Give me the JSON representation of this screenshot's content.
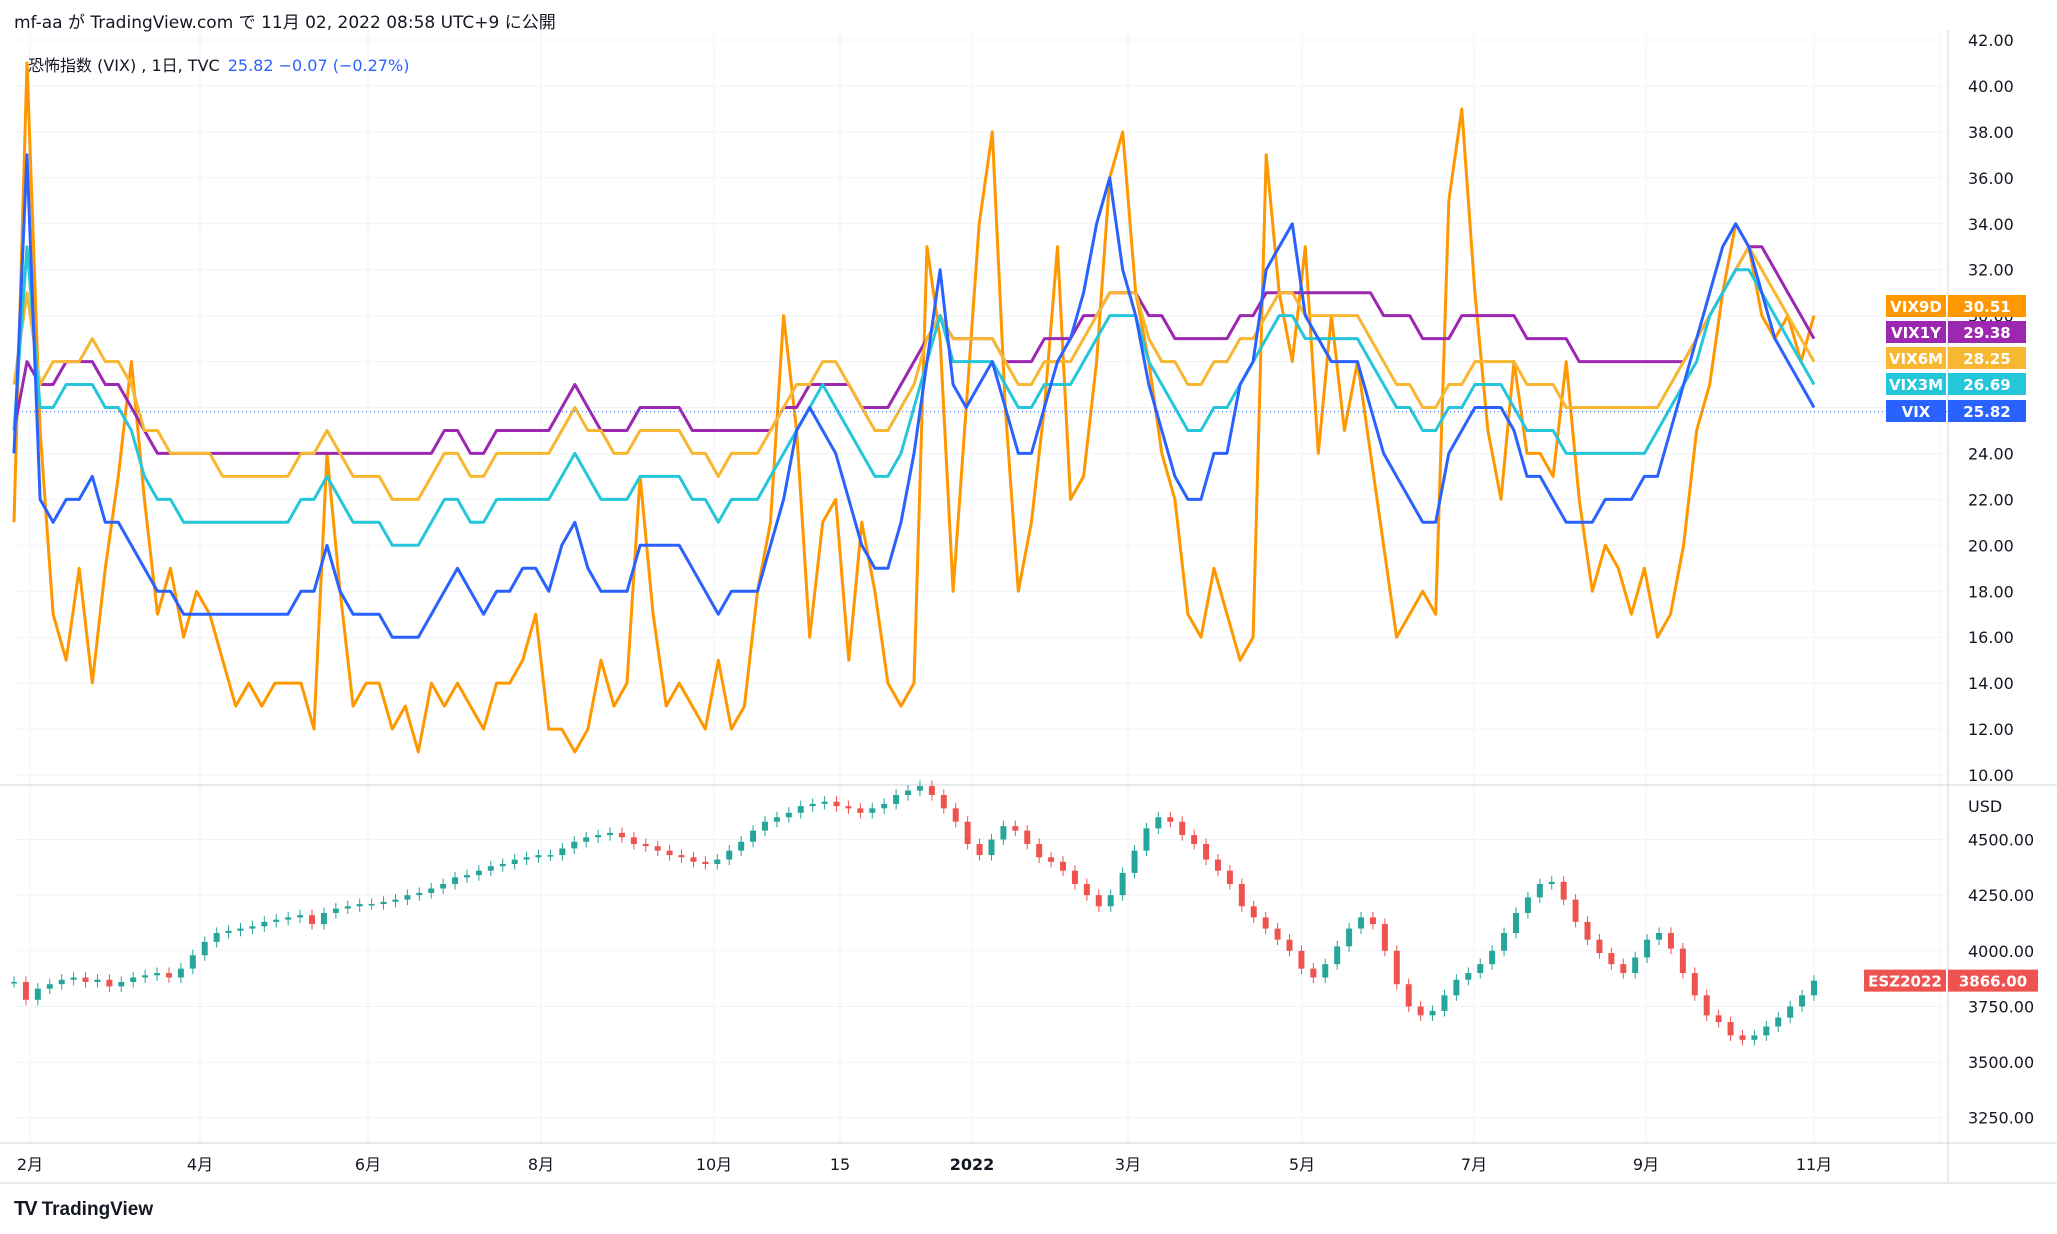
{
  "header": {
    "attribution": "mf-aa が TradingView.com で 11月 02, 2022 08:58 UTC+9 に公開"
  },
  "legend": {
    "symbol": "恐怖指数 (VIX) , 1日, TVC",
    "value": "25.82  −0.07 (−0.27%)"
  },
  "footer": {
    "logo": "TV",
    "brand": "TradingView"
  },
  "colors": {
    "VIX": "#2962ff",
    "VIX9D": "#ff9800",
    "VIX1Y": "#9c27b0",
    "VIX6M": "#f7b731",
    "VIX3M": "#26c6da",
    "ESZ2022": "#ef5350",
    "up": "#26a69a",
    "down": "#ef5350"
  },
  "chart_data": [
    {
      "type": "line",
      "title": "恐怖指数 (VIX) , 1日, TVC",
      "x_ticks": [
        "2月",
        "4月",
        "6月",
        "8月",
        "10月",
        "15",
        "2022",
        "3月",
        "5月",
        "7月",
        "9月",
        "11月"
      ],
      "y_ticks": [
        "10.00",
        "12.00",
        "14.00",
        "16.00",
        "18.00",
        "20.00",
        "22.00",
        "24.00",
        "26.00",
        "28.00",
        "30.00",
        "32.00",
        "34.00",
        "36.00",
        "38.00",
        "40.00",
        "42.00"
      ],
      "ylim": [
        10,
        42
      ],
      "last_labels": [
        {
          "name": "VIX9D",
          "value": "30.51"
        },
        {
          "name": "VIX1Y",
          "value": "29.38"
        },
        {
          "name": "VIX6M",
          "value": "28.25"
        },
        {
          "name": "VIX3M",
          "value": "26.69"
        },
        {
          "name": "VIX",
          "value": "25.82"
        }
      ],
      "series": [
        {
          "name": "VIX9D",
          "values": [
            21,
            41,
            25,
            17,
            15,
            19,
            14,
            19,
            23,
            28,
            22,
            17,
            19,
            16,
            18,
            17,
            15,
            13,
            14,
            13,
            14,
            14,
            14,
            12,
            24,
            18,
            13,
            14,
            14,
            12,
            13,
            11,
            14,
            13,
            14,
            13,
            12,
            14,
            14,
            15,
            17,
            12,
            12,
            11,
            12,
            15,
            13,
            14,
            23,
            17,
            13,
            14,
            13,
            12,
            15,
            12,
            13,
            18,
            21,
            30,
            25,
            16,
            21,
            22,
            15,
            21,
            18,
            14,
            13,
            14,
            33,
            29,
            18,
            26,
            34,
            38,
            26,
            18,
            21,
            26,
            33,
            22,
            23,
            28,
            36,
            38,
            31,
            28,
            24,
            22,
            17,
            16,
            19,
            17,
            15,
            16,
            37,
            31,
            28,
            33,
            24,
            30,
            25,
            28,
            24,
            20,
            16,
            17,
            18,
            17,
            35,
            39,
            31,
            25,
            22,
            28,
            24,
            24,
            23,
            28,
            22,
            18,
            20,
            19,
            17,
            19,
            16,
            17,
            20,
            25,
            27,
            31,
            34,
            33,
            30,
            29,
            30,
            28,
            30
          ]
        },
        {
          "name": "VIX1Y",
          "values": [
            25,
            28,
            27,
            27,
            28,
            28,
            28,
            27,
            27,
            26,
            25,
            24,
            24,
            24,
            24,
            24,
            24,
            24,
            24,
            24,
            24,
            24,
            24,
            24,
            24,
            24,
            24,
            24,
            24,
            24,
            24,
            24,
            24,
            25,
            25,
            24,
            24,
            25,
            25,
            25,
            25,
            25,
            26,
            27,
            26,
            25,
            25,
            25,
            26,
            26,
            26,
            26,
            25,
            25,
            25,
            25,
            25,
            25,
            25,
            26,
            26,
            27,
            27,
            27,
            27,
            26,
            26,
            26,
            27,
            28,
            29,
            30,
            29,
            29,
            29,
            29,
            28,
            28,
            28,
            29,
            29,
            29,
            30,
            30,
            31,
            31,
            31,
            30,
            30,
            29,
            29,
            29,
            29,
            29,
            30,
            30,
            31,
            31,
            31,
            31,
            31,
            31,
            31,
            31,
            31,
            30,
            30,
            30,
            29,
            29,
            29,
            30,
            30,
            30,
            30,
            30,
            29,
            29,
            29,
            29,
            28,
            28,
            28,
            28,
            28,
            28,
            28,
            28,
            28,
            29,
            30,
            31,
            32,
            33,
            33,
            32,
            31,
            30,
            29
          ]
        },
        {
          "name": "VIX6M",
          "values": [
            27,
            31,
            27,
            28,
            28,
            28,
            29,
            28,
            28,
            27,
            25,
            25,
            24,
            24,
            24,
            24,
            23,
            23,
            23,
            23,
            23,
            23,
            24,
            24,
            25,
            24,
            23,
            23,
            23,
            22,
            22,
            22,
            23,
            24,
            24,
            23,
            23,
            24,
            24,
            24,
            24,
            24,
            25,
            26,
            25,
            25,
            24,
            24,
            25,
            25,
            25,
            25,
            24,
            24,
            23,
            24,
            24,
            24,
            25,
            26,
            27,
            27,
            28,
            28,
            27,
            26,
            25,
            25,
            26,
            27,
            29,
            30,
            29,
            29,
            29,
            29,
            28,
            27,
            27,
            28,
            28,
            28,
            29,
            30,
            31,
            31,
            31,
            29,
            28,
            28,
            27,
            27,
            28,
            28,
            29,
            29,
            30,
            31,
            31,
            30,
            30,
            30,
            30,
            30,
            29,
            28,
            27,
            27,
            26,
            26,
            27,
            27,
            28,
            28,
            28,
            28,
            27,
            27,
            27,
            26,
            26,
            26,
            26,
            26,
            26,
            26,
            26,
            27,
            28,
            29,
            30,
            31,
            32,
            33,
            32,
            31,
            30,
            29,
            28
          ]
        },
        {
          "name": "VIX3M",
          "values": [
            25,
            33,
            26,
            26,
            27,
            27,
            27,
            26,
            26,
            25,
            23,
            22,
            22,
            21,
            21,
            21,
            21,
            21,
            21,
            21,
            21,
            21,
            22,
            22,
            23,
            22,
            21,
            21,
            21,
            20,
            20,
            20,
            21,
            22,
            22,
            21,
            21,
            22,
            22,
            22,
            22,
            22,
            23,
            24,
            23,
            22,
            22,
            22,
            23,
            23,
            23,
            23,
            22,
            22,
            21,
            22,
            22,
            22,
            23,
            24,
            25,
            26,
            27,
            26,
            25,
            24,
            23,
            23,
            24,
            26,
            28,
            30,
            28,
            28,
            28,
            28,
            27,
            26,
            26,
            27,
            27,
            27,
            28,
            29,
            30,
            30,
            30,
            28,
            27,
            26,
            25,
            25,
            26,
            26,
            27,
            28,
            29,
            30,
            30,
            29,
            29,
            29,
            29,
            29,
            28,
            27,
            26,
            26,
            25,
            25,
            26,
            26,
            27,
            27,
            27,
            26,
            25,
            25,
            25,
            24,
            24,
            24,
            24,
            24,
            24,
            24,
            25,
            26,
            27,
            28,
            30,
            31,
            32,
            32,
            31,
            30,
            29,
            28,
            27
          ]
        },
        {
          "name": "VIX",
          "values": [
            24,
            37,
            22,
            21,
            22,
            22,
            23,
            21,
            21,
            20,
            19,
            18,
            18,
            17,
            17,
            17,
            17,
            17,
            17,
            17,
            17,
            17,
            18,
            18,
            20,
            18,
            17,
            17,
            17,
            16,
            16,
            16,
            17,
            18,
            19,
            18,
            17,
            18,
            18,
            19,
            19,
            18,
            20,
            21,
            19,
            18,
            18,
            18,
            20,
            20,
            20,
            20,
            19,
            18,
            17,
            18,
            18,
            18,
            20,
            22,
            25,
            26,
            25,
            24,
            22,
            20,
            19,
            19,
            21,
            24,
            28,
            32,
            27,
            26,
            27,
            28,
            26,
            24,
            24,
            26,
            28,
            29,
            31,
            34,
            36,
            32,
            30,
            27,
            25,
            23,
            22,
            22,
            24,
            24,
            27,
            28,
            32,
            33,
            34,
            30,
            29,
            28,
            28,
            28,
            26,
            24,
            23,
            22,
            21,
            21,
            24,
            25,
            26,
            26,
            26,
            25,
            23,
            23,
            22,
            21,
            21,
            21,
            22,
            22,
            22,
            23,
            23,
            25,
            27,
            29,
            31,
            33,
            34,
            33,
            31,
            29,
            28,
            27,
            26
          ]
        }
      ]
    },
    {
      "type": "candlestick",
      "title": "ESZ2022",
      "unit": "USD",
      "x_ticks": [
        "2月",
        "4月",
        "6月",
        "8月",
        "10月",
        "15",
        "2022",
        "3月",
        "5月",
        "7月",
        "9月",
        "11月"
      ],
      "y_ticks": [
        "3250.00",
        "3500.00",
        "3750.00",
        "4000.00",
        "4250.00",
        "4500.00"
      ],
      "ylim": [
        3150,
        4700
      ],
      "last_label": {
        "name": "ESZ2022",
        "value": "3866.00"
      },
      "closes": [
        3860,
        3780,
        3830,
        3850,
        3870,
        3880,
        3860,
        3870,
        3840,
        3860,
        3880,
        3890,
        3900,
        3880,
        3920,
        3980,
        4040,
        4080,
        4090,
        4100,
        4110,
        4130,
        4140,
        4150,
        4160,
        4120,
        4170,
        4190,
        4200,
        4210,
        4210,
        4220,
        4230,
        4250,
        4260,
        4280,
        4300,
        4330,
        4340,
        4360,
        4380,
        4390,
        4410,
        4420,
        4430,
        4430,
        4460,
        4490,
        4510,
        4520,
        4530,
        4510,
        4480,
        4470,
        4450,
        4430,
        4420,
        4400,
        4390,
        4410,
        4450,
        4490,
        4540,
        4580,
        4600,
        4620,
        4650,
        4660,
        4670,
        4650,
        4640,
        4620,
        4640,
        4660,
        4700,
        4720,
        4740,
        4700,
        4640,
        4580,
        4480,
        4430,
        4500,
        4560,
        4540,
        4480,
        4420,
        4400,
        4360,
        4300,
        4250,
        4200,
        4250,
        4350,
        4450,
        4550,
        4600,
        4580,
        4520,
        4480,
        4410,
        4360,
        4300,
        4200,
        4150,
        4100,
        4050,
        4000,
        3920,
        3880,
        3940,
        4020,
        4100,
        4150,
        4120,
        4000,
        3850,
        3750,
        3710,
        3730,
        3800,
        3870,
        3900,
        3940,
        4000,
        4080,
        4170,
        4240,
        4300,
        4310,
        4230,
        4130,
        4050,
        3990,
        3940,
        3900,
        3970,
        4050,
        4080,
        4010,
        3900,
        3800,
        3710,
        3680,
        3620,
        3600,
        3620,
        3660,
        3700,
        3750,
        3800,
        3866
      ]
    }
  ]
}
